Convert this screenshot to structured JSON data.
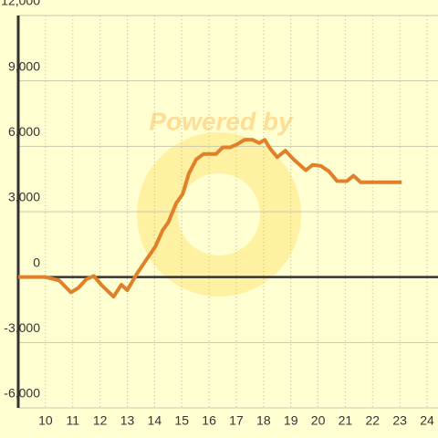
{
  "chart_data": {
    "type": "line",
    "watermark": "Powered by",
    "x": [
      9,
      10,
      10.5,
      10.93,
      11.2,
      11.5,
      11.77,
      12.08,
      12.5,
      12.78,
      13,
      13.35,
      13.7,
      14.03,
      14.3,
      14.5,
      14.8,
      15.03,
      15.26,
      15.53,
      15.8,
      16.26,
      16.5,
      16.77,
      17.04,
      17.3,
      17.6,
      17.84,
      18.04,
      18.24,
      18.5,
      18.8,
      19.1,
      19.55,
      19.8,
      20.1,
      20.4,
      20.7,
      21.05,
      21.3,
      21.56,
      23.07
    ],
    "series": [
      {
        "color": "#e0802a",
        "values": [
          0,
          0,
          -150,
          -700,
          -500,
          -100,
          50,
          -400,
          -900,
          -350,
          -600,
          150,
          800,
          1400,
          2150,
          2500,
          3400,
          3800,
          4750,
          5400,
          5650,
          5650,
          5950,
          5950,
          6100,
          6300,
          6300,
          6150,
          6300,
          5900,
          5500,
          5800,
          5400,
          4900,
          5150,
          5100,
          4850,
          4400,
          4400,
          4650,
          4350,
          4350
        ]
      }
    ],
    "xlim": [
      9,
      24.4
    ],
    "xticks": [
      10,
      11,
      12,
      13,
      14,
      15,
      16,
      17,
      18,
      19,
      20,
      21,
      22,
      23,
      24
    ],
    "ylim": [
      -6000,
      12000
    ],
    "yticks": [
      {
        "value": -6000,
        "label": "-6,000"
      },
      {
        "value": -3000,
        "label": "-3,000"
      },
      0,
      {
        "value": 3000,
        "label": "3,000"
      },
      {
        "value": 6000,
        "label": "6,000"
      },
      {
        "value": 9000,
        "label": "9,000"
      },
      {
        "value": 12000,
        "label": "12,000"
      }
    ],
    "grid": true
  }
}
